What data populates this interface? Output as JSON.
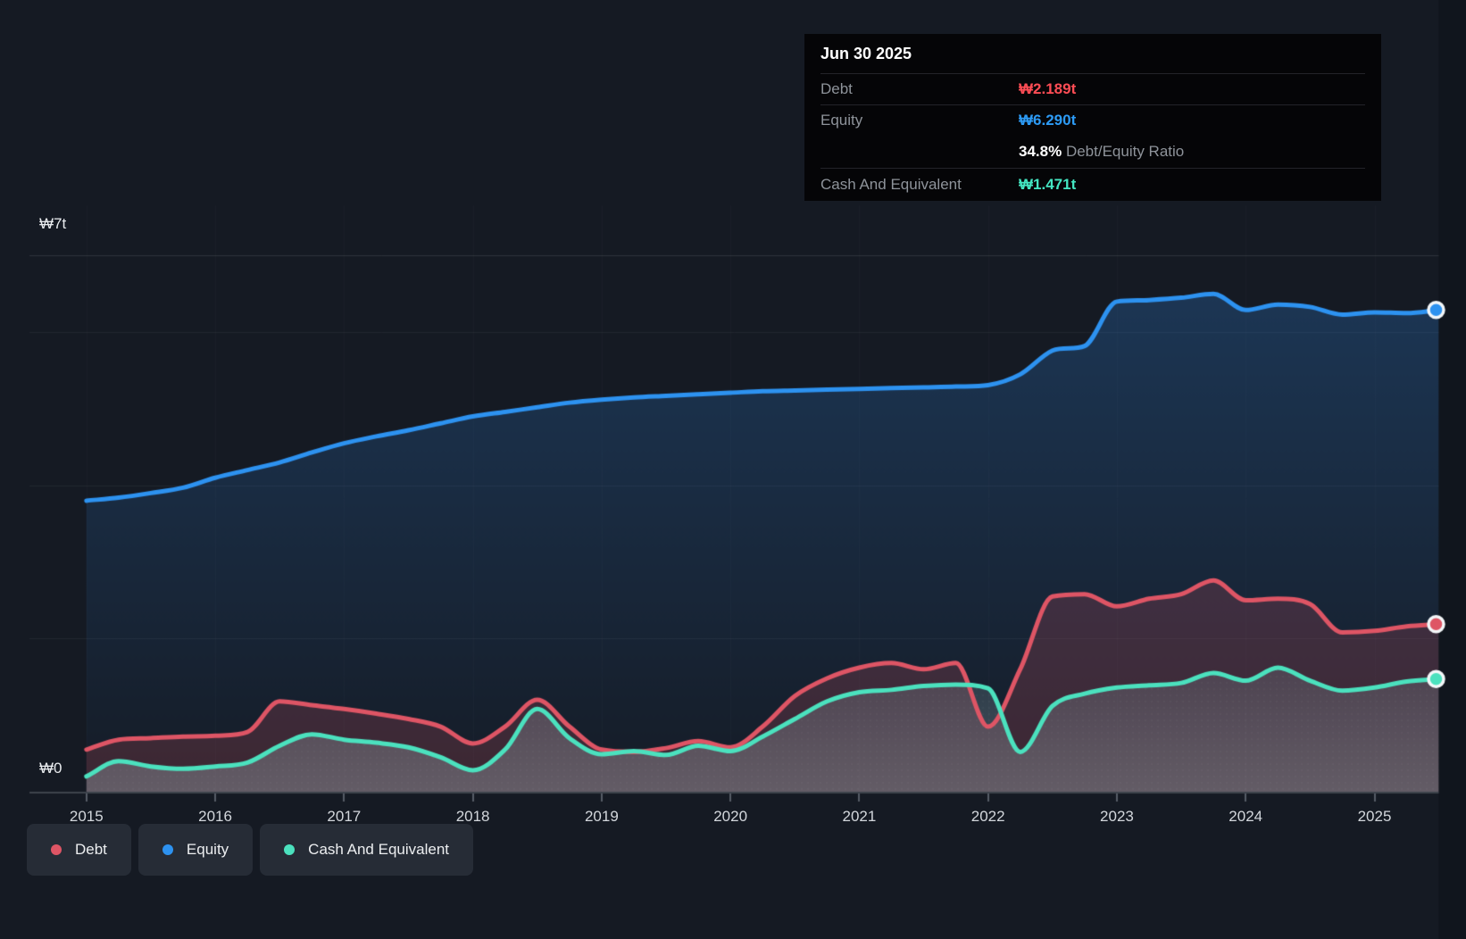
{
  "tooltip": {
    "date": "Jun 30 2025",
    "debt_label": "Debt",
    "debt_value": "₩2.189t",
    "equity_label": "Equity",
    "equity_value": "₩6.290t",
    "ratio_value": "34.8%",
    "ratio_label": "Debt/Equity Ratio",
    "cash_label": "Cash And Equivalent",
    "cash_value": "₩1.471t"
  },
  "y_axis": {
    "top": "₩7t",
    "zero": "₩0"
  },
  "x_axis": {
    "years": [
      "2015",
      "2016",
      "2017",
      "2018",
      "2019",
      "2020",
      "2021",
      "2022",
      "2023",
      "2024",
      "2025"
    ]
  },
  "legend": [
    {
      "label": "Debt",
      "color": "#de5565"
    },
    {
      "label": "Equity",
      "color": "#2d92f0"
    },
    {
      "label": "Cash And Equivalent",
      "color": "#4be1be"
    }
  ],
  "colors": {
    "page_bg": "#151a23",
    "right_band": "#10151d",
    "grid_strong": "rgba(255,255,255,0.11)",
    "grid_faint": "rgba(255,255,255,0.055)",
    "axis_line": "#3d434c",
    "tick": "#575d66",
    "equity_line": "#2d92f0",
    "debt_line": "#de5565",
    "cash_line": "#4be1be",
    "dot_ring": "#f3f6f8"
  },
  "chart_data": {
    "type": "area",
    "title": "Debt, Equity and Cash history (₩ trillions)",
    "unit": "₩ trillions",
    "x_start": 2015.0,
    "x_step": 0.25,
    "x_end": 2025.5,
    "xlim": [
      2015.0,
      2025.5
    ],
    "ylim": [
      0,
      7
    ],
    "y_gridlines_t": [
      7,
      6,
      4,
      2,
      0
    ],
    "y_tick_labels": [
      "₩7t",
      "₩0"
    ],
    "x_tick_labels": [
      "2015",
      "2016",
      "2017",
      "2018",
      "2019",
      "2020",
      "2021",
      "2022",
      "2023",
      "2024",
      "2025"
    ],
    "grid": true,
    "legend_position": "bottom-left",
    "series": [
      {
        "name": "Equity",
        "color": "#2d92f0",
        "values": [
          3.8,
          3.84,
          3.9,
          3.97,
          4.1,
          4.2,
          4.3,
          4.43,
          4.55,
          4.64,
          4.72,
          4.81,
          4.9,
          4.96,
          5.02,
          5.08,
          5.12,
          5.15,
          5.17,
          5.19,
          5.21,
          5.23,
          5.24,
          5.25,
          5.26,
          5.27,
          5.28,
          5.29,
          5.31,
          5.45,
          5.76,
          5.82,
          6.4,
          6.42,
          6.45,
          6.5,
          6.29,
          6.36,
          6.33,
          6.23,
          6.26,
          6.25,
          6.29
        ]
      },
      {
        "name": "Debt",
        "color": "#de5565",
        "values": [
          0.55,
          0.68,
          0.7,
          0.72,
          0.73,
          0.78,
          1.18,
          1.13,
          1.08,
          1.02,
          0.95,
          0.85,
          0.63,
          0.85,
          1.2,
          0.85,
          0.55,
          0.52,
          0.57,
          0.66,
          0.58,
          0.85,
          1.25,
          1.48,
          1.62,
          1.68,
          1.6,
          1.68,
          0.85,
          1.6,
          2.55,
          2.58,
          2.42,
          2.52,
          2.58,
          2.76,
          2.5,
          2.52,
          2.45,
          2.08,
          2.1,
          2.16,
          2.189
        ]
      },
      {
        "name": "Cash And Equivalent",
        "color": "#4be1be",
        "values": [
          0.2,
          0.4,
          0.33,
          0.3,
          0.33,
          0.38,
          0.6,
          0.75,
          0.68,
          0.64,
          0.58,
          0.45,
          0.28,
          0.55,
          1.08,
          0.7,
          0.49,
          0.53,
          0.48,
          0.6,
          0.53,
          0.72,
          0.95,
          1.18,
          1.3,
          1.33,
          1.38,
          1.4,
          1.35,
          0.52,
          1.12,
          1.28,
          1.36,
          1.39,
          1.42,
          1.55,
          1.45,
          1.62,
          1.45,
          1.32,
          1.36,
          1.44,
          1.471
        ]
      }
    ],
    "end_values": {
      "Debt": "₩2.189t",
      "Equity": "₩6.290t",
      "Cash And Equivalent": "₩1.471t",
      "debt_equity_ratio": "34.8%"
    }
  }
}
